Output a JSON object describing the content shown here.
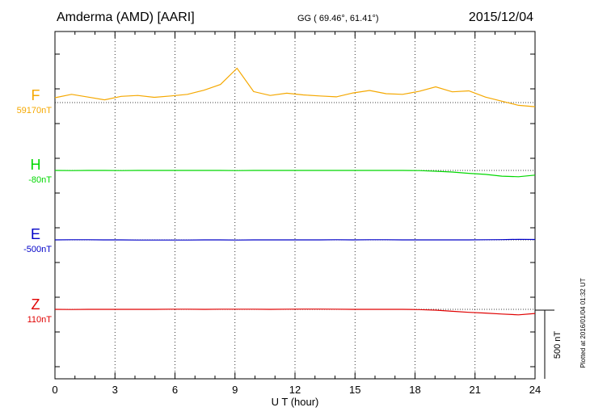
{
  "header": {
    "station": "Amderma (AMD)  [AARI]",
    "coords": "GG ( 69.46°,  61.41°)",
    "date": "2015/12/04"
  },
  "side_note": "Plotted at 2016/01/04 01:32 UT",
  "chart_data": {
    "type": "line",
    "xlabel": "U T (hour)",
    "xlim": [
      0,
      24
    ],
    "xticks": [
      "0",
      "3",
      "6",
      "9",
      "12",
      "15",
      "18",
      "21",
      "24"
    ],
    "scale_bar_label": "500 nT",
    "scale_bar_nT": 500,
    "series": [
      {
        "name": "F",
        "baseline_label": "59170nT",
        "color": "#f5a800",
        "values": [
          59205,
          59230,
          59210,
          59190,
          59215,
          59222,
          59208,
          59218,
          59230,
          59260,
          59302,
          59420,
          59250,
          59222,
          59238,
          59226,
          59218,
          59212,
          59240,
          59258,
          59235,
          59230,
          59252,
          59285,
          59248,
          59255,
          59210,
          59180,
          59150,
          59140
        ]
      },
      {
        "name": "H",
        "baseline_label": "-80nT",
        "color": "#00d800",
        "values": [
          -80,
          -81,
          -80,
          -80,
          -81,
          -80,
          -80,
          -80,
          -80,
          -80,
          -80,
          -81,
          -80,
          -80,
          -80,
          -80,
          -80,
          -80,
          -80,
          -80,
          -80,
          -80,
          -81,
          -86,
          -92,
          -101,
          -109,
          -122,
          -126,
          -114
        ]
      },
      {
        "name": "E",
        "baseline_label": "-500nT",
        "color": "#0000c8",
        "values": [
          -500,
          -499,
          -499,
          -500,
          -500,
          -501,
          -501,
          -501,
          -501,
          -500,
          -500,
          -501,
          -500,
          -500,
          -500,
          -500,
          -500,
          -499,
          -500,
          -499,
          -499,
          -500,
          -500,
          -500,
          -500,
          -500,
          -499,
          -498,
          -496,
          -497
        ]
      },
      {
        "name": "Z",
        "baseline_label": "110nT",
        "color": "#e00000",
        "values": [
          110,
          109,
          110,
          110,
          110,
          110,
          110,
          111,
          111,
          110,
          111,
          111,
          111,
          110,
          111,
          112,
          112,
          111,
          110,
          110,
          110,
          110,
          108,
          104,
          96,
          88,
          83,
          76,
          70,
          80
        ]
      }
    ]
  }
}
